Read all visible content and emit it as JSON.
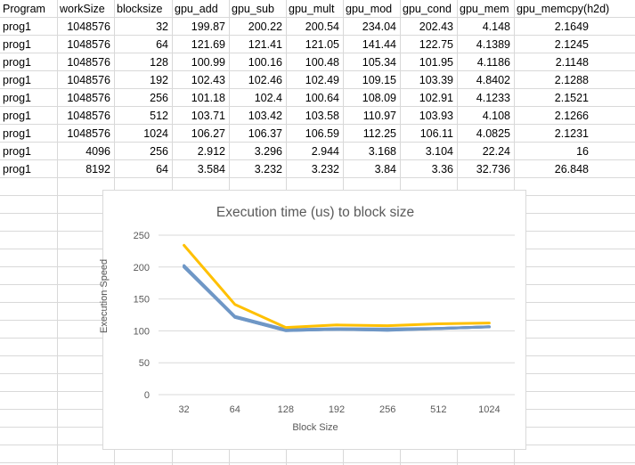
{
  "sheet": {
    "headers": [
      "Program",
      "workSize",
      "blocksize",
      "gpu_add",
      "gpu_sub",
      "gpu_mult",
      "gpu_mod",
      "gpu_cond",
      "gpu_mem",
      "gpu_memcpy(h2d)"
    ],
    "rows": [
      [
        "prog1",
        "1048576",
        "32",
        "199.87",
        "200.22",
        "200.54",
        "234.04",
        "202.43",
        "4.148",
        "2.1649"
      ],
      [
        "prog1",
        "1048576",
        "64",
        "121.69",
        "121.41",
        "121.05",
        "141.44",
        "122.75",
        "4.1389",
        "2.1245"
      ],
      [
        "prog1",
        "1048576",
        "128",
        "100.99",
        "100.16",
        "100.48",
        "105.34",
        "101.95",
        "4.1186",
        "2.1148"
      ],
      [
        "prog1",
        "1048576",
        "192",
        "102.43",
        "102.46",
        "102.49",
        "109.15",
        "103.39",
        "4.8402",
        "2.1288"
      ],
      [
        "prog1",
        "1048576",
        "256",
        "101.18",
        "102.4",
        "100.64",
        "108.09",
        "102.91",
        "4.1233",
        "2.1521"
      ],
      [
        "prog1",
        "1048576",
        "512",
        "103.71",
        "103.42",
        "103.58",
        "110.97",
        "103.93",
        "4.108",
        "2.1266"
      ],
      [
        "prog1",
        "1048576",
        "1024",
        "106.27",
        "106.37",
        "106.59",
        "112.25",
        "106.11",
        "4.0825",
        "2.1231"
      ],
      [
        "prog1",
        "4096",
        "256",
        "2.912",
        "3.296",
        "2.944",
        "3.168",
        "3.104",
        "22.24",
        "16"
      ],
      [
        "prog1",
        "8192",
        "64",
        "3.584",
        "3.232",
        "3.232",
        "3.84",
        "3.36",
        "32.736",
        "26.848"
      ]
    ]
  },
  "chart": {
    "title": "Execution time (us) to block size",
    "xlabel": "Block Size",
    "ylabel": "Execution Speed",
    "colors": {
      "series_blue": "#6f97c6",
      "series_yellow": "#ffc000",
      "grid": "#d9d9d9",
      "text": "#595959"
    }
  },
  "chart_data": {
    "type": "line",
    "title": "Execution time (us) to block size",
    "xlabel": "Block Size",
    "ylabel": "Execution Speed",
    "categories": [
      "32",
      "64",
      "128",
      "192",
      "256",
      "512",
      "1024"
    ],
    "ylim": [
      0,
      250
    ],
    "yticks": [
      0,
      50,
      100,
      150,
      200,
      250
    ],
    "grid": true,
    "series": [
      {
        "values": [
          199.87,
          121.69,
          100.99,
          102.43,
          101.18,
          103.71,
          106.27
        ],
        "color": "#6f97c6"
      },
      {
        "values": [
          200.22,
          121.41,
          100.16,
          102.46,
          102.4,
          103.42,
          106.37
        ],
        "color": "#6f97c6"
      },
      {
        "values": [
          200.54,
          121.05,
          100.48,
          102.49,
          100.64,
          103.58,
          106.59
        ],
        "color": "#6f97c6"
      },
      {
        "values": [
          234.04,
          141.44,
          105.34,
          109.15,
          108.09,
          110.97,
          112.25
        ],
        "color": "#ffc000"
      },
      {
        "values": [
          202.43,
          122.75,
          101.95,
          103.39,
          102.91,
          103.93,
          106.11
        ],
        "color": "#6f97c6"
      }
    ]
  }
}
